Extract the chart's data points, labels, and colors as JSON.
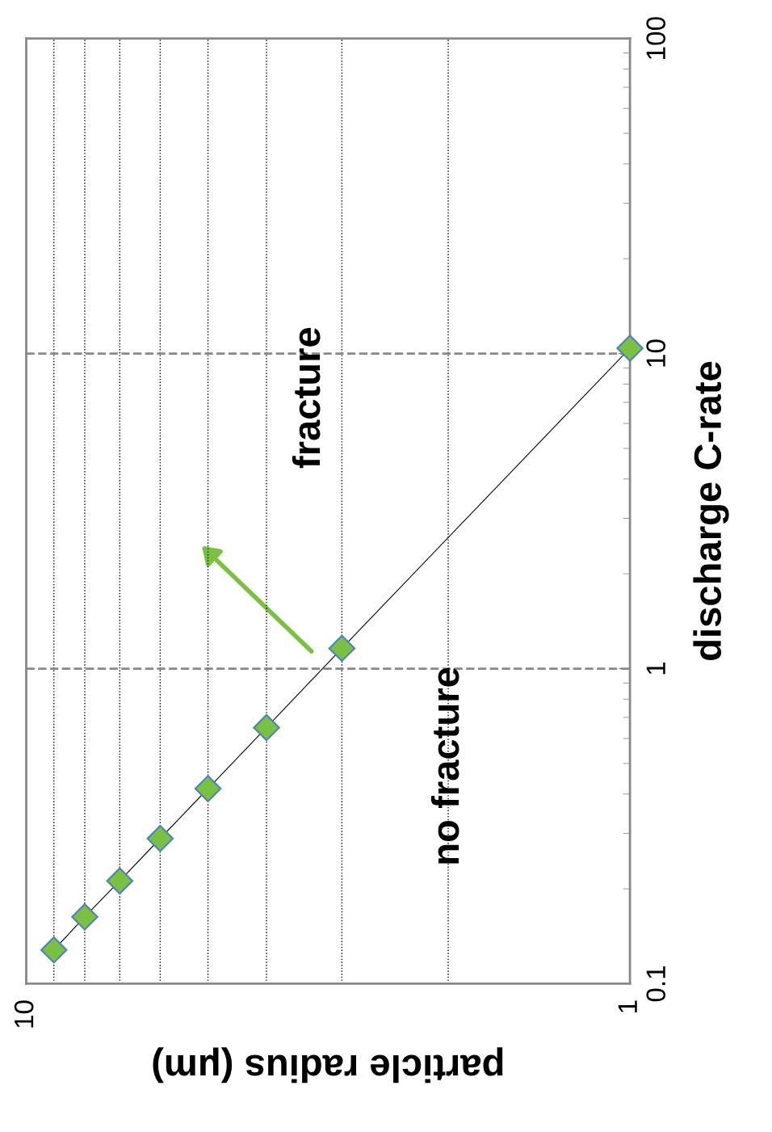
{
  "chart_data": {
    "type": "line",
    "xlabel": "particle radius (μm)",
    "ylabel": "discharge C-rate",
    "x": [
      9,
      8,
      7,
      6,
      5,
      4,
      3,
      1
    ],
    "series": [
      {
        "color": "#7ac143",
        "values": [
          0.128,
          0.163,
          0.212,
          0.289,
          0.416,
          0.65,
          1.16,
          10.4
        ]
      }
    ],
    "log": "xy",
    "xlim": [
      10,
      1
    ],
    "xticks": [
      10,
      1
    ],
    "ylim": [
      0.1,
      100
    ],
    "yticks": [
      0.1,
      1,
      10,
      100
    ],
    "grid": true,
    "marker": "diamond",
    "line_style": "solid",
    "annotations": [
      "fracture",
      "no fracture"
    ]
  }
}
